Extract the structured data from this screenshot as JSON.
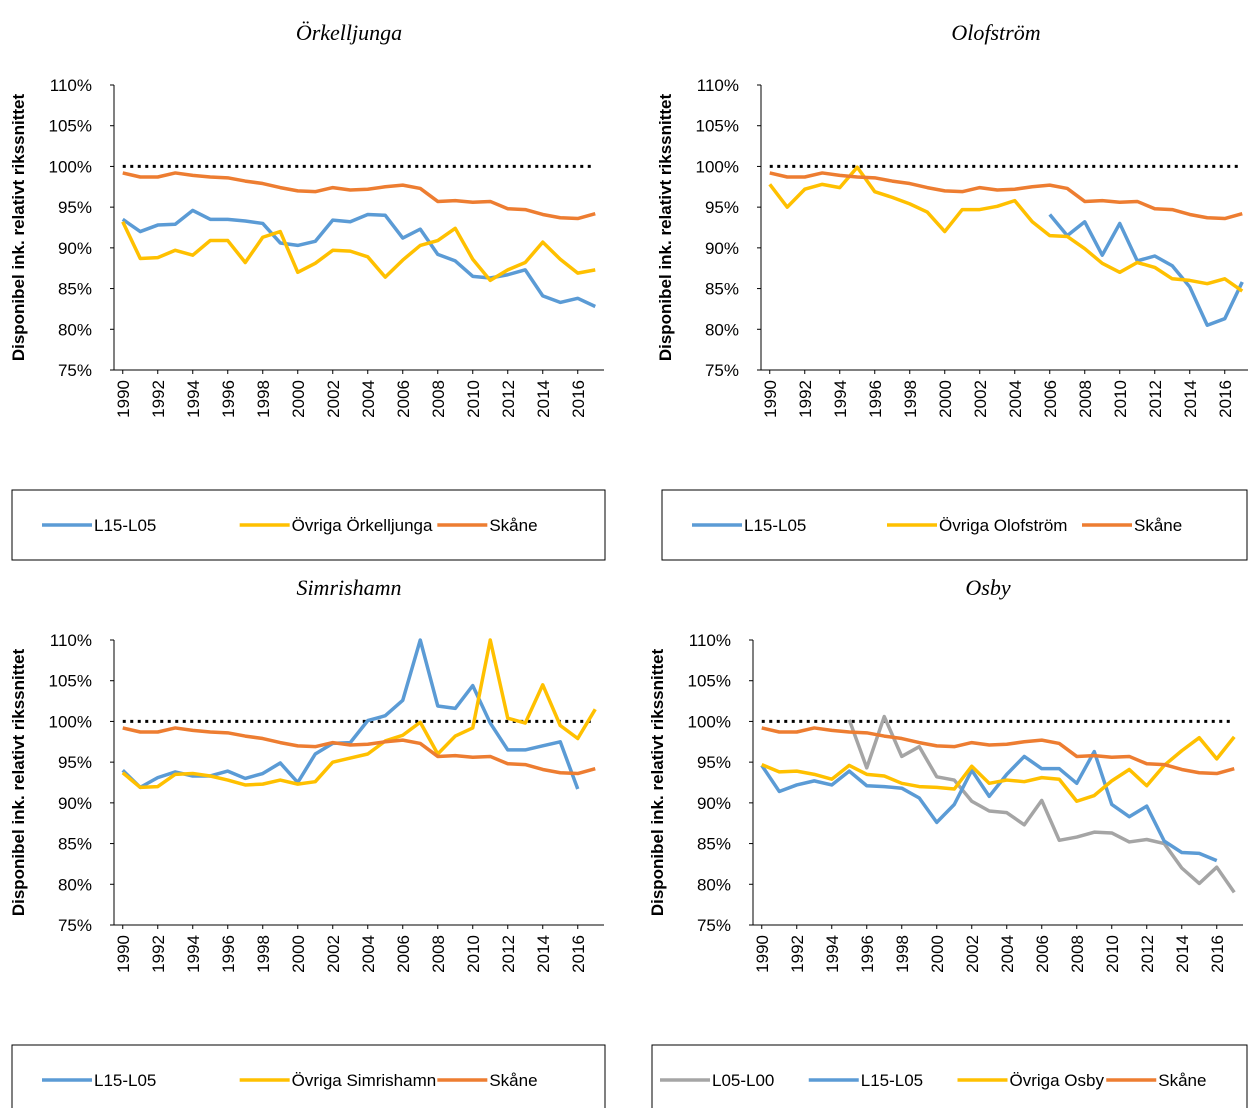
{
  "chart_data": [
    {
      "type": "line",
      "title": "Örkelljunga",
      "y_label": "Disponibel ink. relativt rikssnittet",
      "x": [
        1990,
        1991,
        1992,
        1993,
        1994,
        1995,
        1996,
        1997,
        1998,
        1999,
        2000,
        2001,
        2002,
        2003,
        2004,
        2005,
        2006,
        2007,
        2008,
        2009,
        2010,
        2011,
        2012,
        2013,
        2014,
        2015,
        2016,
        2017
      ],
      "xlim": [
        1989.5,
        2017.5
      ],
      "xticks": [
        1990,
        1992,
        1994,
        1996,
        1998,
        2000,
        2002,
        2004,
        2006,
        2008,
        2010,
        2012,
        2014,
        2016
      ],
      "ylim": [
        75,
        110
      ],
      "yticks": [
        {
          "value": 75,
          "label": "75%"
        },
        {
          "value": 80,
          "label": "80%"
        },
        {
          "value": 85,
          "label": "85%"
        },
        {
          "value": 90,
          "label": "90%"
        },
        {
          "value": 95,
          "label": "95%"
        },
        {
          "value": 100,
          "label": "100%"
        },
        {
          "value": 105,
          "label": "105%"
        },
        {
          "value": 110,
          "label": "110%"
        }
      ],
      "reference_value": 100,
      "legend": "bottom",
      "series": [
        {
          "name": "L15-L05",
          "color": "#5b9bd5",
          "values": [
            93.5,
            92.0,
            92.8,
            92.9,
            94.6,
            93.5,
            93.5,
            93.3,
            93.0,
            90.6,
            90.3,
            90.8,
            93.4,
            93.2,
            94.1,
            94.0,
            91.2,
            92.3,
            89.2,
            88.4,
            86.5,
            86.3,
            86.7,
            87.3,
            84.1,
            83.3,
            83.8,
            82.8
          ]
        },
        {
          "name": "Övriga Örkelljunga",
          "color": "#ffc000",
          "values": [
            93.2,
            88.7,
            88.8,
            89.7,
            89.1,
            90.9,
            90.9,
            88.2,
            91.3,
            92.0,
            87.0,
            88.1,
            89.7,
            89.6,
            88.9,
            86.4,
            88.5,
            90.3,
            90.9,
            92.4,
            88.6,
            86.0,
            87.3,
            88.2,
            90.7,
            88.6,
            86.9,
            87.3
          ]
        },
        {
          "name": "Skåne",
          "color": "#ed7d31",
          "values": [
            99.2,
            98.7,
            98.7,
            99.2,
            98.9,
            98.7,
            98.6,
            98.2,
            97.9,
            97.4,
            97.0,
            96.9,
            97.4,
            97.1,
            97.2,
            97.5,
            97.7,
            97.3,
            95.7,
            95.8,
            95.6,
            95.7,
            94.8,
            94.7,
            94.1,
            93.7,
            93.6,
            94.2
          ]
        }
      ]
    },
    {
      "type": "line",
      "title": "Olofström",
      "y_label": "Disponibel ink. relativt rikssnittet",
      "x": [
        1990,
        1991,
        1992,
        1993,
        1994,
        1995,
        1996,
        1997,
        1998,
        1999,
        2000,
        2001,
        2002,
        2003,
        2004,
        2005,
        2006,
        2007,
        2008,
        2009,
        2010,
        2011,
        2012,
        2013,
        2014,
        2015,
        2016,
        2017
      ],
      "xlim": [
        1989.5,
        2017.5
      ],
      "xticks": [
        1990,
        1992,
        1994,
        1996,
        1998,
        2000,
        2002,
        2004,
        2006,
        2008,
        2010,
        2012,
        2014,
        2016
      ],
      "ylim": [
        75,
        110
      ],
      "yticks": [
        {
          "value": 75,
          "label": "75%"
        },
        {
          "value": 80,
          "label": "80%"
        },
        {
          "value": 85,
          "label": "85%"
        },
        {
          "value": 90,
          "label": "90%"
        },
        {
          "value": 95,
          "label": "95%"
        },
        {
          "value": 100,
          "label": "100%"
        },
        {
          "value": 105,
          "label": "105%"
        },
        {
          "value": 110,
          "label": "110%"
        }
      ],
      "reference_value": 100,
      "legend": "bottom",
      "series": [
        {
          "name": "L15-L05",
          "color": "#5b9bd5",
          "values": [
            null,
            null,
            null,
            null,
            null,
            null,
            null,
            null,
            null,
            null,
            null,
            null,
            null,
            null,
            null,
            null,
            94.1,
            91.5,
            93.2,
            89.1,
            93.0,
            88.4,
            89.0,
            87.8,
            85.2,
            80.5,
            81.3,
            85.8
          ]
        },
        {
          "name": "Övriga Olofström",
          "color": "#ffc000",
          "values": [
            97.8,
            95.0,
            97.2,
            97.8,
            97.4,
            99.9,
            96.9,
            96.2,
            95.4,
            94.4,
            92.0,
            94.7,
            94.7,
            95.1,
            95.8,
            93.2,
            91.5,
            91.4,
            89.9,
            88.1,
            87.0,
            88.2,
            87.6,
            86.2,
            86.0,
            85.6,
            86.2,
            84.7
          ]
        },
        {
          "name": "Skåne",
          "color": "#ed7d31",
          "values": [
            99.2,
            98.7,
            98.7,
            99.2,
            98.9,
            98.7,
            98.6,
            98.2,
            97.9,
            97.4,
            97.0,
            96.9,
            97.4,
            97.1,
            97.2,
            97.5,
            97.7,
            97.3,
            95.7,
            95.8,
            95.6,
            95.7,
            94.8,
            94.7,
            94.1,
            93.7,
            93.6,
            94.2
          ]
        }
      ]
    },
    {
      "type": "line",
      "title": "Simrishamn",
      "y_label": "Disponibel ink. relativt rikssnittet",
      "x": [
        1990,
        1991,
        1992,
        1993,
        1994,
        1995,
        1996,
        1997,
        1998,
        1999,
        2000,
        2001,
        2002,
        2003,
        2004,
        2005,
        2006,
        2007,
        2008,
        2009,
        2010,
        2011,
        2012,
        2013,
        2014,
        2015,
        2016,
        2017
      ],
      "xlim": [
        1989.5,
        2017.5
      ],
      "xticks": [
        1990,
        1992,
        1994,
        1996,
        1998,
        2000,
        2002,
        2004,
        2006,
        2008,
        2010,
        2012,
        2014,
        2016
      ],
      "ylim": [
        75,
        110
      ],
      "yticks": [
        {
          "value": 75,
          "label": "75%"
        },
        {
          "value": 80,
          "label": "80%"
        },
        {
          "value": 85,
          "label": "85%"
        },
        {
          "value": 90,
          "label": "90%"
        },
        {
          "value": 95,
          "label": "95%"
        },
        {
          "value": 100,
          "label": "100%"
        },
        {
          "value": 105,
          "label": "105%"
        },
        {
          "value": 110,
          "label": "110%"
        }
      ],
      "reference_value": 100,
      "legend": "bottom",
      "series": [
        {
          "name": "L15-L05",
          "color": "#5b9bd5",
          "values": [
            94.0,
            91.9,
            93.1,
            93.8,
            93.3,
            93.3,
            93.9,
            93.0,
            93.6,
            94.9,
            92.5,
            96.0,
            97.3,
            97.4,
            100.1,
            100.7,
            102.6,
            110.0,
            101.9,
            101.6,
            104.4,
            99.8,
            96.5,
            96.5,
            97.0,
            97.5,
            91.7,
            null
          ]
        },
        {
          "name": "Övriga Simrishamn",
          "color": "#ffc000",
          "values": [
            93.7,
            91.9,
            92.0,
            93.5,
            93.6,
            93.3,
            92.8,
            92.2,
            92.3,
            92.8,
            92.3,
            92.6,
            95.0,
            95.5,
            96.0,
            97.6,
            98.3,
            99.9,
            96.0,
            98.2,
            99.2,
            110.0,
            100.4,
            99.8,
            104.5,
            99.5,
            97.9,
            101.5
          ]
        },
        {
          "name": "Skåne",
          "color": "#ed7d31",
          "values": [
            99.2,
            98.7,
            98.7,
            99.2,
            98.9,
            98.7,
            98.6,
            98.2,
            97.9,
            97.4,
            97.0,
            96.9,
            97.4,
            97.1,
            97.2,
            97.5,
            97.7,
            97.3,
            95.7,
            95.8,
            95.6,
            95.7,
            94.8,
            94.7,
            94.1,
            93.7,
            93.6,
            94.2
          ]
        }
      ]
    },
    {
      "type": "line",
      "title": "Osby",
      "y_label": "Disponibel ink. relativt rikssnittet",
      "x": [
        1990,
        1991,
        1992,
        1993,
        1994,
        1995,
        1996,
        1997,
        1998,
        1999,
        2000,
        2001,
        2002,
        2003,
        2004,
        2005,
        2006,
        2007,
        2008,
        2009,
        2010,
        2011,
        2012,
        2013,
        2014,
        2015,
        2016,
        2017
      ],
      "xlim": [
        1989.5,
        2017.5
      ],
      "xticks": [
        1990,
        1992,
        1994,
        1996,
        1998,
        2000,
        2002,
        2004,
        2006,
        2008,
        2010,
        2012,
        2014,
        2016
      ],
      "ylim": [
        75,
        110
      ],
      "yticks": [
        {
          "value": 75,
          "label": "75%"
        },
        {
          "value": 80,
          "label": "80%"
        },
        {
          "value": 85,
          "label": "85%"
        },
        {
          "value": 90,
          "label": "90%"
        },
        {
          "value": 95,
          "label": "95%"
        },
        {
          "value": 100,
          "label": "100%"
        },
        {
          "value": 105,
          "label": "105%"
        },
        {
          "value": 110,
          "label": "110%"
        }
      ],
      "reference_value": 100,
      "legend": "bottom",
      "series": [
        {
          "name": "L05-L00",
          "color": "#a5a5a5",
          "values": [
            null,
            null,
            null,
            null,
            null,
            100.2,
            94.3,
            100.6,
            95.7,
            96.9,
            93.2,
            92.8,
            90.2,
            89.0,
            88.8,
            87.3,
            90.3,
            85.4,
            85.8,
            86.4,
            86.3,
            85.2,
            85.5,
            85.0,
            82.0,
            80.1,
            82.1,
            79.0
          ]
        },
        {
          "name": "L15-L05",
          "color": "#5b9bd5",
          "values": [
            94.6,
            91.4,
            92.2,
            92.7,
            92.2,
            93.9,
            92.1,
            92.0,
            91.8,
            90.6,
            87.6,
            89.8,
            94.0,
            90.8,
            93.5,
            95.7,
            94.2,
            94.2,
            92.4,
            96.3,
            89.8,
            88.3,
            89.6,
            85.3,
            83.9,
            83.8,
            82.9,
            null
          ]
        },
        {
          "name": "Övriga Osby",
          "color": "#ffc000",
          "values": [
            94.7,
            93.8,
            93.9,
            93.5,
            92.9,
            94.6,
            93.5,
            93.3,
            92.4,
            92.0,
            91.9,
            91.7,
            94.5,
            92.4,
            92.8,
            92.6,
            93.1,
            92.9,
            90.2,
            90.9,
            92.7,
            94.1,
            92.1,
            94.6,
            96.4,
            98.0,
            95.4,
            98.1
          ]
        },
        {
          "name": "Skåne",
          "color": "#ed7d31",
          "values": [
            99.2,
            98.7,
            98.7,
            99.2,
            98.9,
            98.7,
            98.6,
            98.2,
            97.9,
            97.4,
            97.0,
            96.9,
            97.4,
            97.1,
            97.2,
            97.5,
            97.7,
            97.3,
            95.7,
            95.8,
            95.6,
            95.7,
            94.8,
            94.7,
            94.1,
            93.7,
            93.6,
            94.2
          ]
        }
      ]
    }
  ]
}
